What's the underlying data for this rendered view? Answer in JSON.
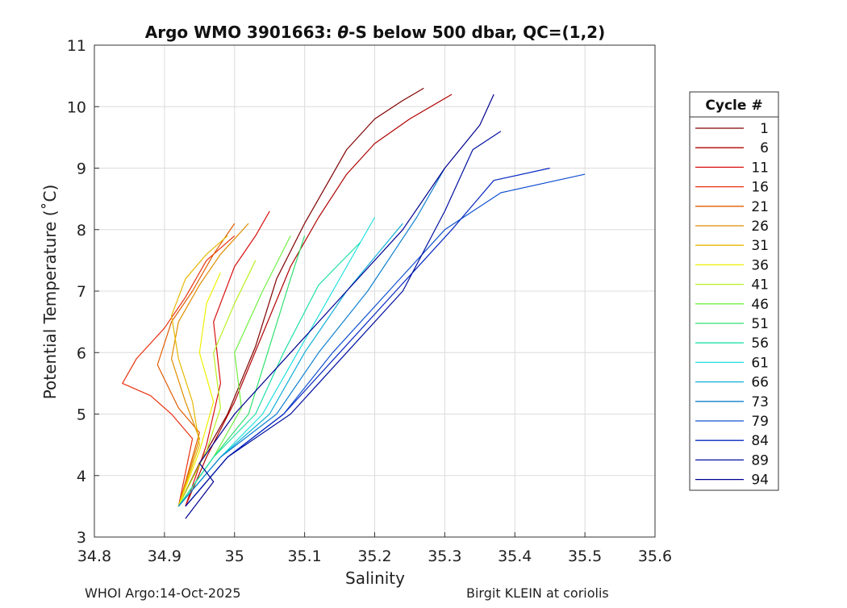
{
  "chart_data": {
    "type": "line",
    "title_prefix": "Argo WMO 3901663: ",
    "title_theta": "θ",
    "title_suffix": "-S below 500 dbar,  QC=(1,2)",
    "xlabel": "Salinity",
    "ylabel": "Potential Temperature (˚C)",
    "xlim": [
      34.8,
      35.6
    ],
    "ylim": [
      3,
      11
    ],
    "xticks": [
      "34.8",
      "34.9",
      "35",
      "35.1",
      "35.2",
      "35.3",
      "35.4",
      "35.5",
      "35.6"
    ],
    "yticks": [
      "3",
      "4",
      "5",
      "6",
      "7",
      "8",
      "9",
      "10",
      "11"
    ],
    "grid": true,
    "legend": {
      "title": "Cycle #",
      "placement": "right",
      "entries": [
        "1",
        "6",
        "11",
        "16",
        "21",
        "26",
        "31",
        "36",
        "41",
        "46",
        "51",
        "56",
        "61",
        "66",
        "73",
        "79",
        "84",
        "89",
        "94"
      ],
      "colors": [
        "#800000",
        "#b00000",
        "#d81010",
        "#e83010",
        "#e05c00",
        "#e08c00",
        "#e6b800",
        "#f0f000",
        "#b8f020",
        "#70f040",
        "#30e070",
        "#20e0a8",
        "#20e0e0",
        "#10b0d8",
        "#1080d0",
        "#1050d0",
        "#0828c0",
        "#0010a0",
        "#000090"
      ]
    },
    "series_summary": "approximate traces of the theta-S profiles (salinity, potential temperature)",
    "series": [
      {
        "name": "1",
        "x": [
          34.92,
          34.95,
          34.99,
          35.03,
          35.06,
          35.1,
          35.14,
          35.16,
          35.2,
          35.24,
          35.27
        ],
        "y": [
          3.5,
          4.2,
          5.0,
          6.1,
          7.2,
          8.1,
          8.9,
          9.3,
          9.8,
          10.1,
          10.3
        ]
      },
      {
        "name": "6",
        "x": [
          34.93,
          34.96,
          35.0,
          35.04,
          35.08,
          35.12,
          35.16,
          35.2,
          35.25,
          35.31
        ],
        "y": [
          3.5,
          4.3,
          5.2,
          6.3,
          7.4,
          8.2,
          8.9,
          9.4,
          9.8,
          10.2
        ]
      },
      {
        "name": "11",
        "x": [
          34.93,
          34.96,
          34.98,
          34.97,
          35.0,
          35.03,
          35.05
        ],
        "y": [
          3.5,
          4.5,
          5.5,
          6.5,
          7.4,
          7.9,
          8.3
        ]
      },
      {
        "name": "16",
        "x": [
          34.92,
          34.94,
          34.91,
          34.88,
          34.84,
          34.86,
          34.9,
          34.93,
          34.96,
          35.0
        ],
        "y": [
          3.5,
          4.6,
          5.0,
          5.3,
          5.5,
          5.9,
          6.4,
          6.9,
          7.5,
          7.9
        ]
      },
      {
        "name": "21",
        "x": [
          34.92,
          34.95,
          34.92,
          34.89,
          34.91,
          34.94,
          34.97,
          35.0
        ],
        "y": [
          3.5,
          4.7,
          5.1,
          5.8,
          6.5,
          7.0,
          7.6,
          8.1
        ]
      },
      {
        "name": "26",
        "x": [
          34.92,
          34.95,
          34.93,
          34.91,
          34.92,
          34.95,
          34.98,
          35.02
        ],
        "y": [
          3.5,
          4.6,
          5.2,
          5.9,
          6.5,
          7.1,
          7.6,
          8.1
        ]
      },
      {
        "name": "31",
        "x": [
          34.92,
          34.95,
          34.94,
          34.92,
          34.91,
          34.93,
          34.96,
          34.99
        ],
        "y": [
          3.5,
          4.5,
          5.2,
          5.9,
          6.6,
          7.2,
          7.6,
          7.9
        ]
      },
      {
        "name": "36",
        "x": [
          34.92,
          34.95,
          34.97,
          34.95,
          34.96,
          34.98
        ],
        "y": [
          3.5,
          4.4,
          5.2,
          6.0,
          6.8,
          7.3
        ]
      },
      {
        "name": "41",
        "x": [
          34.92,
          34.96,
          34.98,
          34.97,
          35.0,
          35.03
        ],
        "y": [
          3.5,
          4.4,
          5.1,
          6.0,
          6.8,
          7.5
        ]
      },
      {
        "name": "46",
        "x": [
          34.92,
          34.97,
          35.01,
          35.0,
          35.04,
          35.08
        ],
        "y": [
          3.5,
          4.3,
          5.1,
          6.0,
          7.0,
          7.9
        ]
      },
      {
        "name": "51",
        "x": [
          34.92,
          34.97,
          35.02,
          35.05,
          35.08,
          35.1
        ],
        "y": [
          3.5,
          4.3,
          5.0,
          6.1,
          7.2,
          7.9
        ]
      },
      {
        "name": "56",
        "x": [
          34.92,
          34.97,
          35.03,
          35.07,
          35.12,
          35.18
        ],
        "y": [
          3.5,
          4.3,
          5.0,
          6.0,
          7.1,
          7.8
        ]
      },
      {
        "name": "61",
        "x": [
          34.92,
          34.98,
          35.04,
          35.09,
          35.14,
          35.2
        ],
        "y": [
          3.5,
          4.3,
          5.0,
          6.0,
          7.0,
          8.2
        ]
      },
      {
        "name": "66",
        "x": [
          34.92,
          34.98,
          35.05,
          35.1,
          35.16,
          35.24
        ],
        "y": [
          3.5,
          4.3,
          5.0,
          6.0,
          7.0,
          8.1
        ]
      },
      {
        "name": "73",
        "x": [
          34.92,
          34.98,
          35.06,
          35.12,
          35.19,
          35.26,
          35.3
        ],
        "y": [
          3.5,
          4.3,
          5.0,
          6.0,
          7.0,
          8.2,
          9.0
        ]
      },
      {
        "name": "79",
        "x": [
          34.93,
          34.99,
          35.07,
          35.14,
          35.22,
          35.3,
          35.38,
          35.5
        ],
        "y": [
          3.5,
          4.3,
          5.0,
          6.0,
          7.0,
          8.0,
          8.6,
          8.9
        ]
      },
      {
        "name": "84",
        "x": [
          34.93,
          34.99,
          35.07,
          35.15,
          35.23,
          35.31,
          35.37,
          35.45
        ],
        "y": [
          3.5,
          4.3,
          5.0,
          6.0,
          7.0,
          8.0,
          8.8,
          9.0
        ]
      },
      {
        "name": "89",
        "x": [
          34.93,
          34.99,
          35.08,
          35.16,
          35.24,
          35.3,
          35.34,
          35.38
        ],
        "y": [
          3.5,
          4.3,
          5.0,
          6.0,
          7.0,
          8.3,
          9.3,
          9.6
        ]
      },
      {
        "name": "94",
        "x": [
          34.93,
          34.97,
          34.95,
          35.0,
          35.08,
          35.16,
          35.24,
          35.3,
          35.35,
          35.37
        ],
        "y": [
          3.3,
          3.9,
          4.2,
          5.0,
          6.0,
          7.0,
          8.0,
          9.0,
          9.7,
          10.2
        ]
      }
    ]
  },
  "footer": {
    "left": "WHOI Argo:14-Oct-2025",
    "right": "Birgit KLEIN at coriolis"
  }
}
